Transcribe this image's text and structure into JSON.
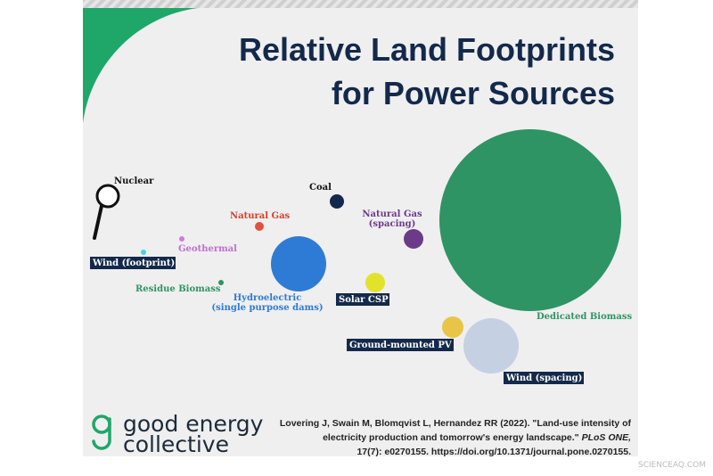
{
  "header": {
    "title_line1": "Relative Land Footprints",
    "title_line2": "for Power Sources"
  },
  "labels": {
    "nuclear": "Nuclear",
    "coal": "Coal",
    "natural_gas": "Natural Gas",
    "natural_gas_spacing_1": "Natural Gas",
    "natural_gas_spacing_2": "(spacing)",
    "geothermal": "Geothermal",
    "wind_footprint": "Wind (footprint)",
    "residue_biomass": "Residue Biomass",
    "hydro_1": "Hydroelectric",
    "hydro_2": "(single purpose dams)",
    "solar_csp": "Solar CSP",
    "dedicated_biomass": "Dedicated Biomass",
    "ground_pv": "Ground-mounted PV",
    "wind_spacing": "Wind (spacing)"
  },
  "footer": {
    "logo_line1": "good energy",
    "logo_line2": "collective",
    "citation": {
      "line1": "Lovering J, Swain M, Blomqvist L, Hernandez RR (2022). \"Land-use intensity of",
      "line2a": "electricity production and tomorrow's energy landscape.\" ",
      "line2b": "PLoS ONE,",
      "line3": "17(7): e0270155. https://doi.org/10.1371/journal.pone.0270155."
    }
  },
  "watermark": "SCIENCEAQ.COM"
}
